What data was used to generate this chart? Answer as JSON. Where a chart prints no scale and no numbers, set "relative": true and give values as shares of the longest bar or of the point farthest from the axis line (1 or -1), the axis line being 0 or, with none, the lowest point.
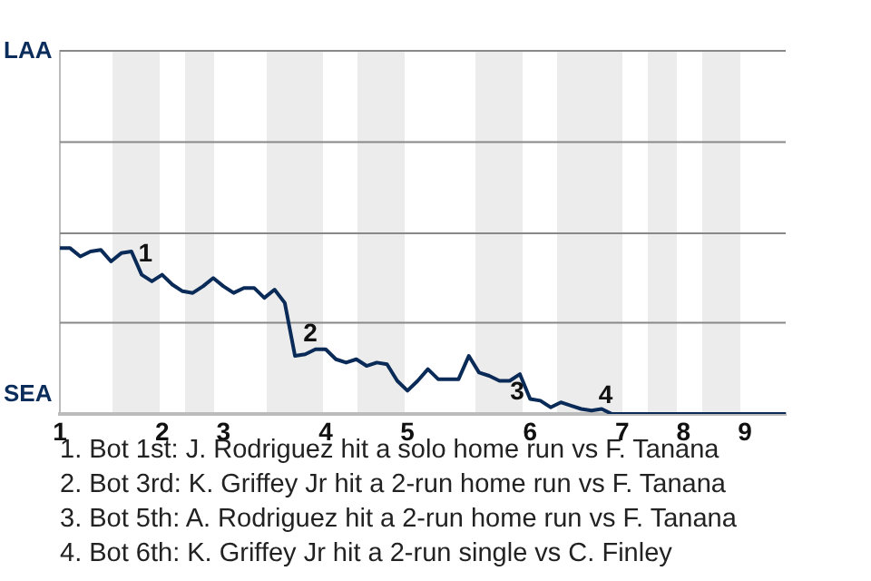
{
  "chart_data": {
    "type": "line",
    "relative": true,
    "categories": [
      "1",
      null,
      null,
      null,
      null,
      null,
      null,
      null,
      null,
      null,
      "2",
      null,
      null,
      null,
      null,
      null,
      "3",
      null,
      null,
      null,
      null,
      null,
      null,
      null,
      null,
      null,
      "4",
      null,
      null,
      null,
      null,
      null,
      null,
      null,
      "5",
      null,
      null,
      null,
      null,
      null,
      null,
      null,
      null,
      null,
      null,
      null,
      "6",
      null,
      null,
      null,
      null,
      null,
      null,
      null,
      null,
      "7",
      null,
      null,
      null,
      null,
      null,
      "8",
      null,
      null,
      null,
      null,
      null,
      "9",
      null,
      null,
      null,
      null
    ],
    "series": [
      {
        "color": "#0a2b57",
        "values": [
          1,
          1,
          0.95,
          0.98,
          0.99,
          0.92,
          0.97,
          0.98,
          0.84,
          0.8,
          0.84,
          0.78,
          0.74,
          0.73,
          0.77,
          0.82,
          0.77,
          0.73,
          0.76,
          0.76,
          0.7,
          0.75,
          0.67,
          0.35,
          0.36,
          0.39,
          0.39,
          0.33,
          0.31,
          0.33,
          0.29,
          0.31,
          0.3,
          0.2,
          0.14,
          0.2,
          0.27,
          0.21,
          0.21,
          0.21,
          0.35,
          0.25,
          0.23,
          0.2,
          0.2,
          0.24,
          0.09,
          0.08,
          0.04,
          0.07,
          0.05,
          0.03,
          0.02,
          0.03,
          0,
          0,
          0,
          0,
          0,
          0,
          0,
          0,
          0,
          0,
          0,
          0,
          0,
          0,
          0,
          0,
          0,
          0
        ]
      }
    ],
    "ref_lines": [
      {
        "axis": "y",
        "value": 0.55,
        "color": "#888888"
      },
      {
        "axis": "y",
        "value": 1.09,
        "color": "#888888"
      },
      {
        "axis": "y",
        "value": 1.64,
        "color": "#888888"
      },
      {
        "axis": "y",
        "value": 2.19,
        "color": "#888888"
      }
    ],
    "legend": false,
    "marker": "none",
    "line_style": "solid",
    "annotations": [
      "LAA",
      "SEA",
      "1",
      "2",
      "3",
      "4",
      "1. Bot 1st: J. Rodriguez hit a solo home run vs F. Tanana",
      "2. Bot 3rd: K. Griffey Jr hit a 2-run home run vs F. Tanana",
      "3. Bot 5th: A. Rodriguez hit a 2-run home run vs F. Tanana",
      "4. Bot 6th: K. Griffey Jr hit a 2-run single vs C. Finley"
    ]
  }
}
